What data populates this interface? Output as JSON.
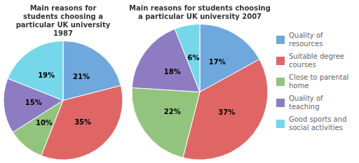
{
  "chart_data": [
    {
      "type": "pie",
      "title": "Main reasons for\nstudents choosing a\nparticular UK university\n1987",
      "categories": [
        "Quality of\nresources",
        "Suitable degree\ncourses",
        "Close to parental\nhome",
        "Quality of\nteaching",
        "Good sports and\nsocial activities"
      ],
      "values": [
        21,
        35,
        10,
        15,
        19
      ],
      "value_labels": [
        "21%",
        "35%",
        "10%",
        "15%",
        "19%"
      ],
      "colors": [
        "#6FA8DC",
        "#E06666",
        "#93C47D",
        "#8E7CC3",
        "#76D7EA"
      ],
      "data_labels": true
    },
    {
      "type": "pie",
      "title": "Main reasons for students choosing\na particular UK university 2007",
      "categories": [
        "Quality of\nresources",
        "Suitable degree\ncourses",
        "Close to parental\nhome",
        "Quality of\nteaching",
        "Good sports and\nsocial activities"
      ],
      "values": [
        17,
        37,
        22,
        18,
        6
      ],
      "value_labels": [
        "17%",
        "37%",
        "22%",
        "18%",
        "6%"
      ],
      "colors": [
        "#6FA8DC",
        "#E06666",
        "#93C47D",
        "#8E7CC3",
        "#76D7EA"
      ],
      "data_labels": true,
      "legend": "right"
    }
  ]
}
